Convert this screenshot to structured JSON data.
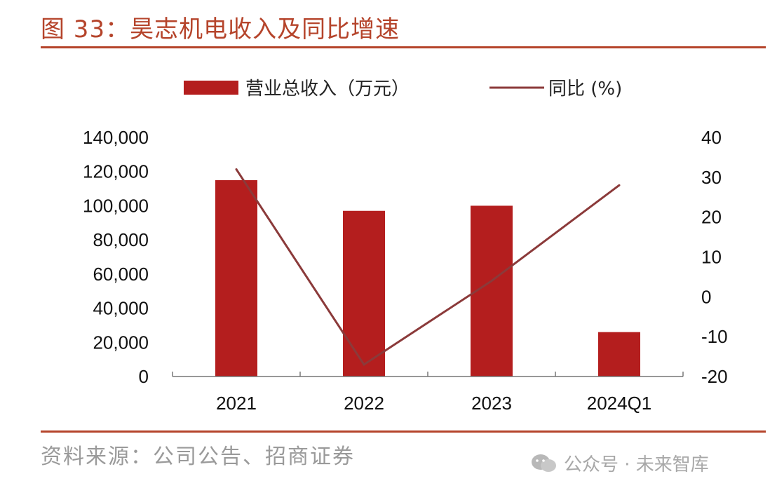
{
  "header": {
    "title": "图 33：昊志机电收入及同比增速"
  },
  "footer": {
    "source": "资料来源：公司公告、招商证券",
    "watermark": "公众号 · 未来智库"
  },
  "colors": {
    "accent": "#b5442b",
    "bar": "#b41e1e",
    "line": "#8b3a3a"
  },
  "icons": {
    "watermark": "wechat-icon"
  },
  "chart_data": {
    "type": "bar",
    "categories": [
      "2021",
      "2022",
      "2023",
      "2024Q1"
    ],
    "series": [
      {
        "name": "营业总收入（万元）",
        "type": "bar",
        "axis": "left",
        "values": [
          115000,
          97000,
          100000,
          26000
        ]
      },
      {
        "name": "同比 (%)",
        "type": "line",
        "axis": "right",
        "values": [
          32,
          -17,
          4,
          28
        ]
      }
    ],
    "left_axis": {
      "ylim": [
        0,
        140000
      ],
      "ticks": [
        "0",
        "20,000",
        "40,000",
        "60,000",
        "80,000",
        "100,000",
        "120,000",
        "140,000"
      ]
    },
    "right_axis": {
      "ylim": [
        -20,
        40
      ],
      "ticks": [
        "-20",
        "-10",
        "0",
        "10",
        "20",
        "30",
        "40"
      ]
    },
    "legend_position": "top-center",
    "grid": false
  }
}
